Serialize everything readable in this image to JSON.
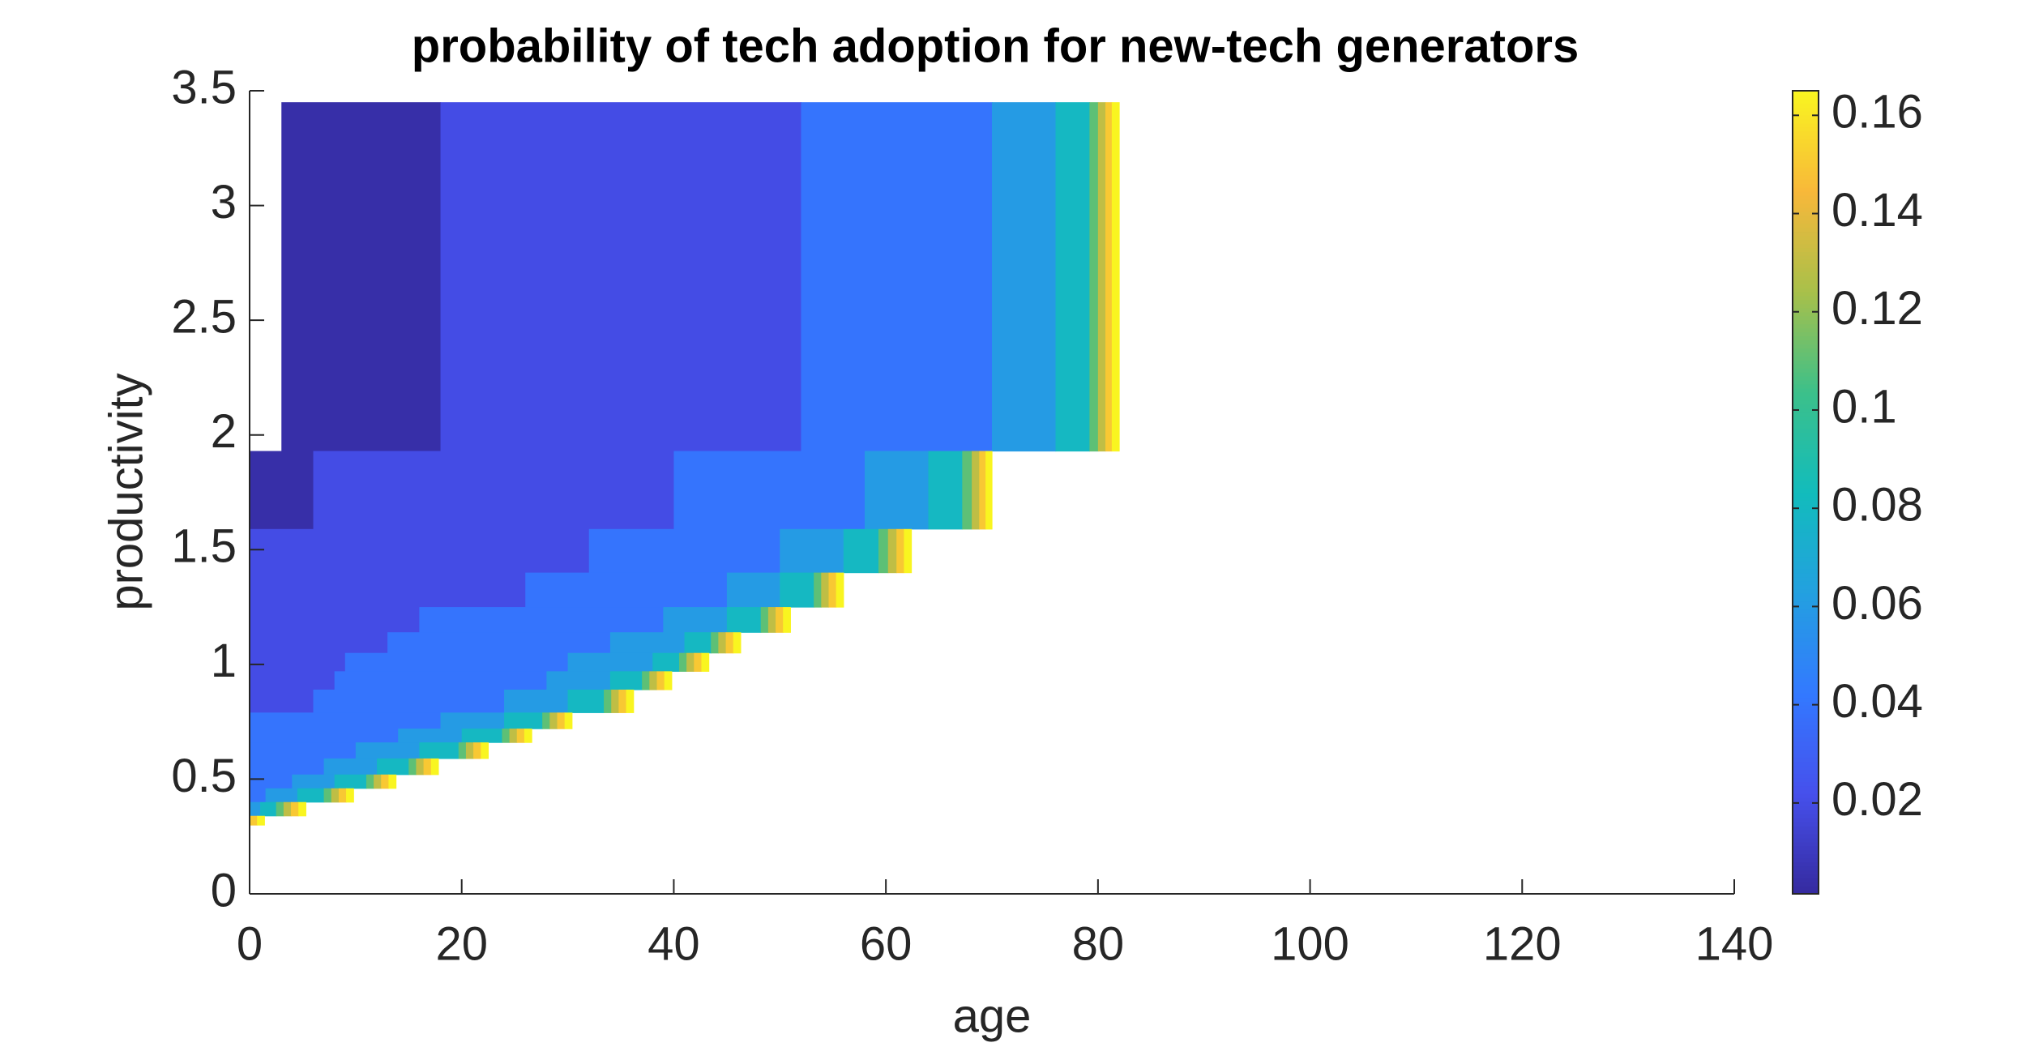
{
  "chart_data": {
    "type": "heatmap",
    "title": "probability of tech adoption for new-tech generators",
    "x_label": "age",
    "y_label": "productivity",
    "xlim": [
      0,
      140
    ],
    "xticks": [
      0,
      20,
      40,
      60,
      80,
      100,
      120,
      140
    ],
    "ylim": [
      0,
      3.5
    ],
    "yticks": [
      0,
      0.5,
      1,
      1.5,
      2,
      2.5,
      3,
      3.5
    ],
    "clim": [
      0.0015,
      0.165
    ],
    "cticks": [
      0.02,
      0.04,
      0.06,
      0.08,
      0.1,
      0.12,
      0.14,
      0.16
    ],
    "colormap": [
      "#352a9e",
      "#4650ec",
      "#3379ff",
      "#23a0e0",
      "#12bcbc",
      "#3cc08a",
      "#a8c04a",
      "#f8b83a",
      "#f9f520"
    ],
    "rows": [
      {
        "y": [
          1.93,
          3.45
        ],
        "x_edges": [
          3,
          18,
          52,
          70,
          76,
          79.2,
          80,
          80.7,
          81.3,
          82
        ],
        "values": [
          0.004,
          0.02,
          0.04,
          0.06,
          0.08,
          0.11,
          0.13,
          0.15,
          0.165
        ]
      },
      {
        "y": [
          1.59,
          1.93
        ],
        "x_edges": [
          0,
          6,
          40,
          58,
          64,
          67.2,
          68.1,
          68.8,
          69.4,
          70
        ],
        "values": [
          0.004,
          0.02,
          0.04,
          0.06,
          0.08,
          0.11,
          0.13,
          0.15,
          0.165
        ]
      },
      {
        "y": [
          1.4,
          1.59
        ],
        "x_edges": [
          0,
          32,
          50,
          56,
          59.3,
          60.2,
          61,
          61.7,
          62.4
        ],
        "values": [
          0.02,
          0.04,
          0.06,
          0.08,
          0.11,
          0.13,
          0.15,
          0.165
        ]
      },
      {
        "y": [
          1.25,
          1.4
        ],
        "x_edges": [
          0,
          26,
          45,
          50,
          53.2,
          53.9,
          54.6,
          55.3,
          56
        ],
        "values": [
          0.02,
          0.04,
          0.06,
          0.08,
          0.11,
          0.13,
          0.15,
          0.165
        ]
      },
      {
        "y": [
          1.14,
          1.25
        ],
        "x_edges": [
          0,
          16,
          39,
          45,
          48.2,
          48.9,
          49.6,
          50.3,
          51
        ],
        "values": [
          0.02,
          0.04,
          0.06,
          0.08,
          0.11,
          0.13,
          0.15,
          0.165
        ]
      },
      {
        "y": [
          1.05,
          1.14
        ],
        "x_edges": [
          0,
          13,
          34,
          41,
          43.5,
          44.2,
          44.9,
          45.6,
          46.3
        ],
        "values": [
          0.02,
          0.04,
          0.06,
          0.08,
          0.11,
          0.13,
          0.15,
          0.165
        ]
      },
      {
        "y": [
          0.97,
          1.05
        ],
        "x_edges": [
          0,
          9,
          30,
          38,
          40.5,
          41.2,
          41.9,
          42.6,
          43.3
        ],
        "values": [
          0.02,
          0.04,
          0.06,
          0.08,
          0.11,
          0.13,
          0.15,
          0.165
        ]
      },
      {
        "y": [
          0.89,
          0.97
        ],
        "x_edges": [
          0,
          8,
          28,
          34,
          37,
          37.7,
          38.4,
          39.1,
          39.8
        ],
        "values": [
          0.02,
          0.04,
          0.06,
          0.08,
          0.11,
          0.13,
          0.15,
          0.165
        ]
      },
      {
        "y": [
          0.79,
          0.89
        ],
        "x_edges": [
          0,
          6,
          24,
          30,
          33.4,
          34.1,
          34.8,
          35.5,
          36.2
        ],
        "values": [
          0.02,
          0.04,
          0.06,
          0.08,
          0.11,
          0.13,
          0.15,
          0.165
        ]
      },
      {
        "y": [
          0.72,
          0.79
        ],
        "x_edges": [
          0,
          18,
          24,
          27.6,
          28.3,
          29,
          29.7,
          30.4
        ],
        "values": [
          0.04,
          0.06,
          0.08,
          0.11,
          0.13,
          0.15,
          0.165
        ]
      },
      {
        "y": [
          0.66,
          0.72
        ],
        "x_edges": [
          0,
          14,
          20,
          23.8,
          24.5,
          25.2,
          25.9,
          26.6
        ],
        "values": [
          0.04,
          0.06,
          0.08,
          0.11,
          0.13,
          0.15,
          0.165
        ]
      },
      {
        "y": [
          0.59,
          0.66
        ],
        "x_edges": [
          0,
          10,
          16,
          19.7,
          20.4,
          21.1,
          21.8,
          22.5
        ],
        "values": [
          0.04,
          0.06,
          0.08,
          0.11,
          0.13,
          0.15,
          0.165
        ]
      },
      {
        "y": [
          0.52,
          0.59
        ],
        "x_edges": [
          0,
          7,
          12,
          15,
          15.7,
          16.4,
          17.1,
          17.8
        ],
        "values": [
          0.04,
          0.06,
          0.08,
          0.11,
          0.13,
          0.15,
          0.165
        ]
      },
      {
        "y": [
          0.46,
          0.52
        ],
        "x_edges": [
          0,
          4,
          8,
          11,
          11.7,
          12.4,
          13.1,
          13.8
        ],
        "values": [
          0.04,
          0.06,
          0.08,
          0.11,
          0.13,
          0.15,
          0.165
        ]
      },
      {
        "y": [
          0.4,
          0.46
        ],
        "x_edges": [
          0,
          1.5,
          4.5,
          7,
          7.7,
          8.4,
          9.1,
          9.8
        ],
        "values": [
          0.04,
          0.06,
          0.08,
          0.11,
          0.13,
          0.15,
          0.165
        ]
      },
      {
        "y": [
          0.34,
          0.4
        ],
        "x_edges": [
          0,
          1,
          2.5,
          3.2,
          3.9,
          4.6,
          5.3
        ],
        "values": [
          0.06,
          0.08,
          0.11,
          0.13,
          0.15,
          0.165
        ]
      },
      {
        "y": [
          0.3,
          0.34
        ],
        "x_edges": [
          0,
          0.7,
          1.4
        ],
        "values": [
          0.15,
          0.165
        ]
      }
    ]
  }
}
